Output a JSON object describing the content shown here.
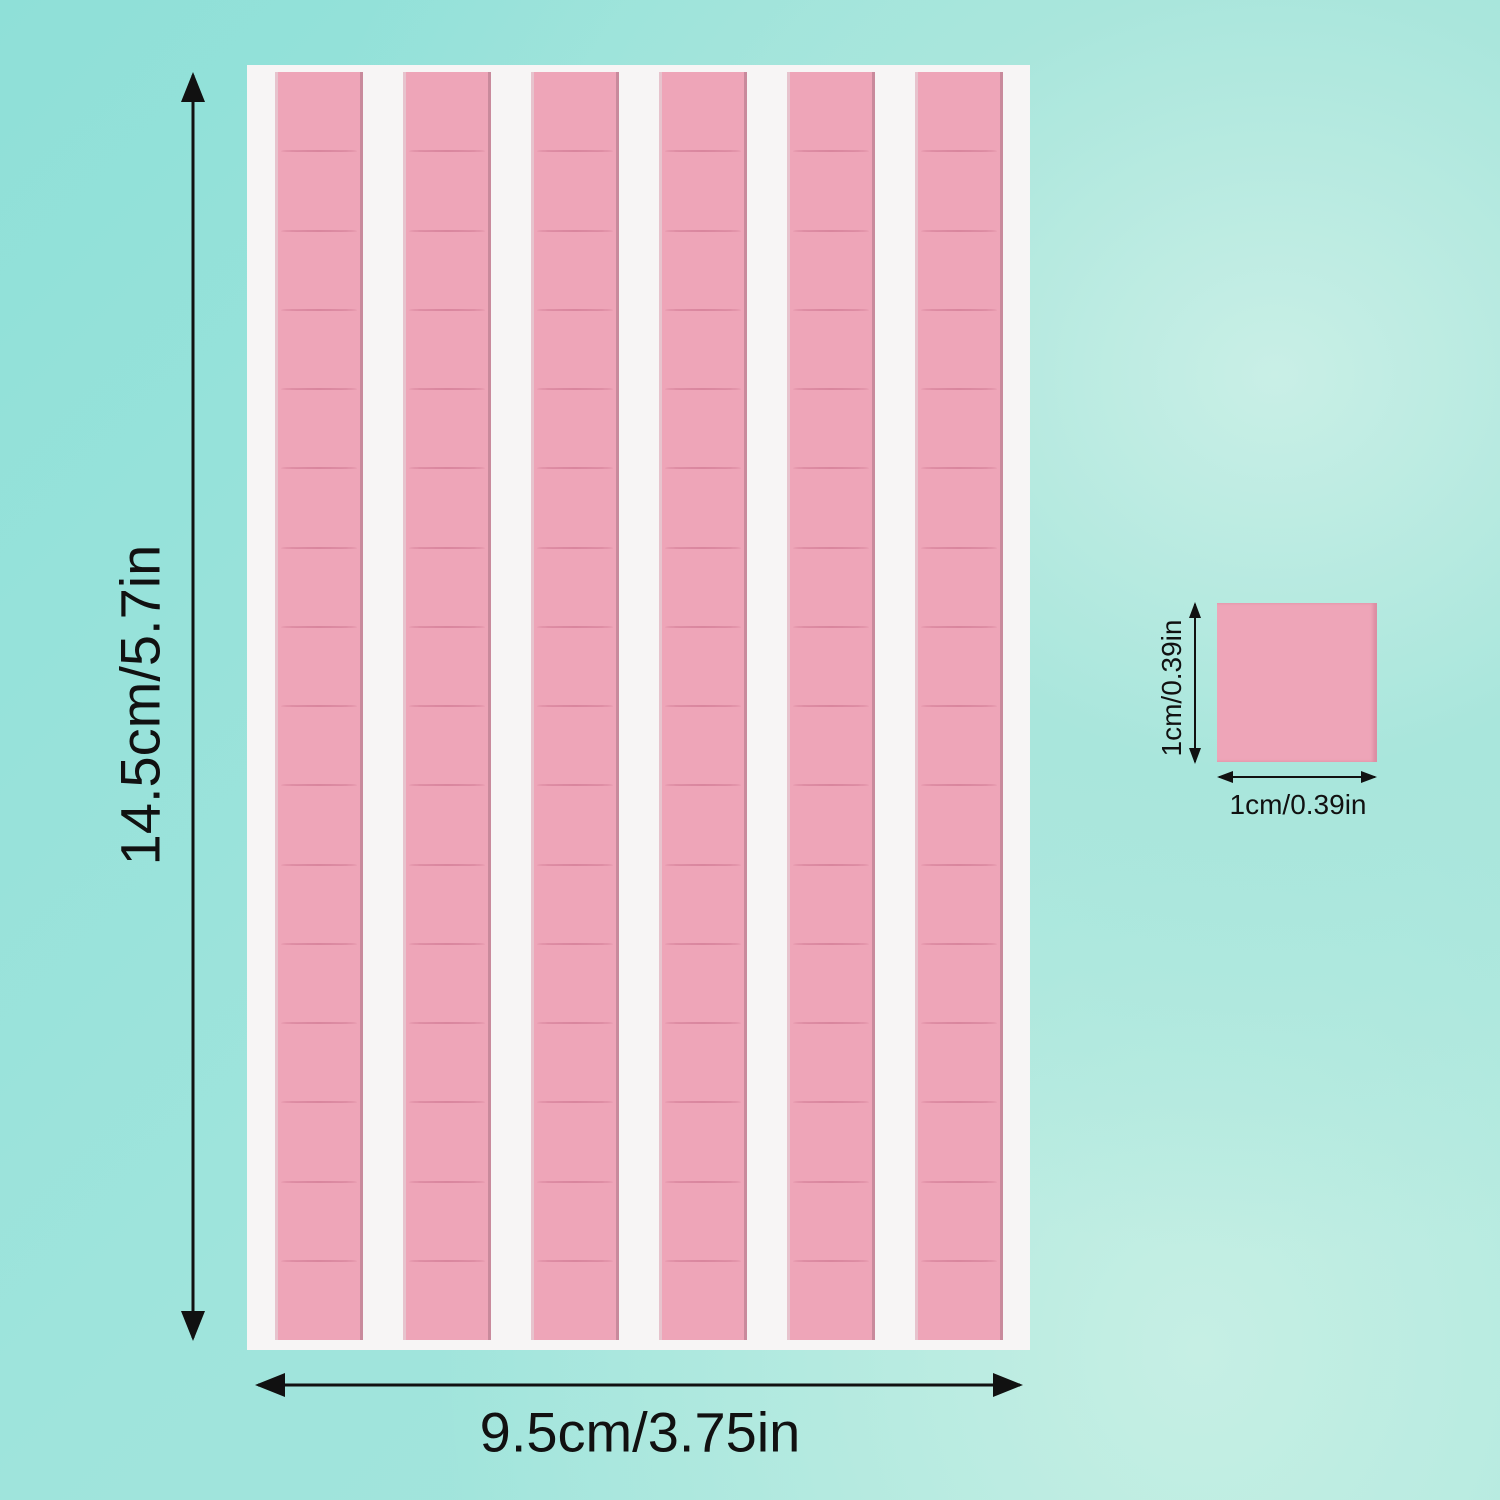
{
  "sheet": {
    "strips": 6,
    "squares_per_strip": 16
  },
  "dimensions": {
    "height_label": "14.5cm/5.7in",
    "width_label": "9.5cm/3.75in",
    "square_height_label": "1cm/0.39in",
    "square_width_label": "1cm/0.39in"
  },
  "colors": {
    "pink": "#eea5b8",
    "sheet": "#f7f5f5",
    "background": "#9fe4dc",
    "arrow": "#111111"
  }
}
